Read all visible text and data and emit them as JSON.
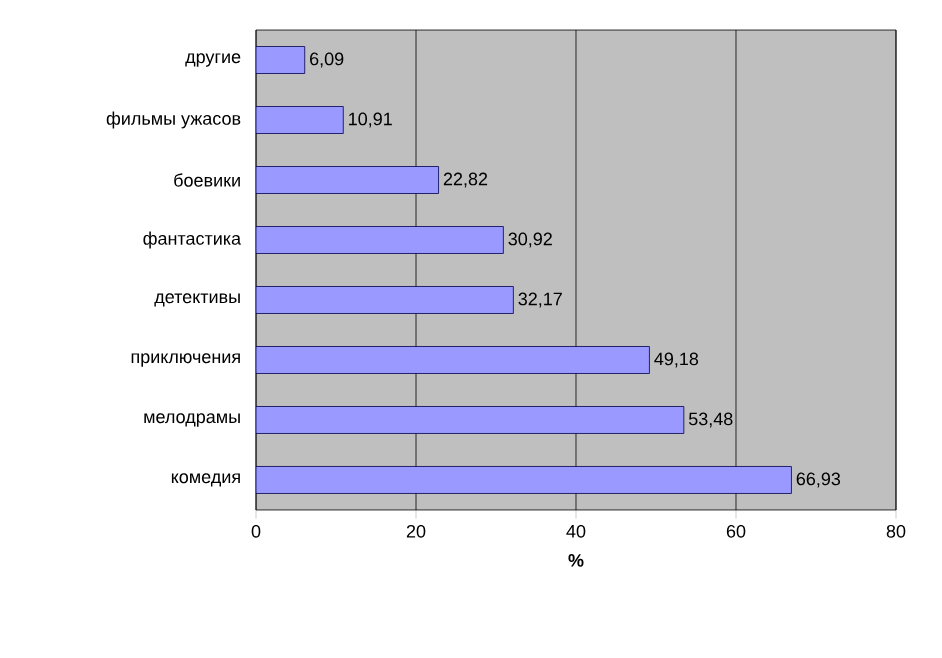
{
  "chart_data": {
    "type": "bar",
    "orientation": "horizontal",
    "xlabel": "%",
    "categories": [
      "другие",
      "фильмы ужасов",
      "боевики",
      "фантастика",
      "детективы",
      "приключения",
      "мелодрамы",
      "комедия"
    ],
    "values": [
      6.09,
      10.91,
      22.82,
      30.92,
      32.17,
      49.18,
      53.48,
      66.93
    ],
    "value_labels": [
      "6,09",
      "10,91",
      "22,82",
      "30,92",
      "32,17",
      "49,18",
      "53,48",
      "66,93"
    ],
    "color": "#9999ff",
    "xlim": [
      0,
      80
    ],
    "xticks": [
      0,
      20,
      40,
      60,
      80
    ],
    "grid": "x"
  }
}
